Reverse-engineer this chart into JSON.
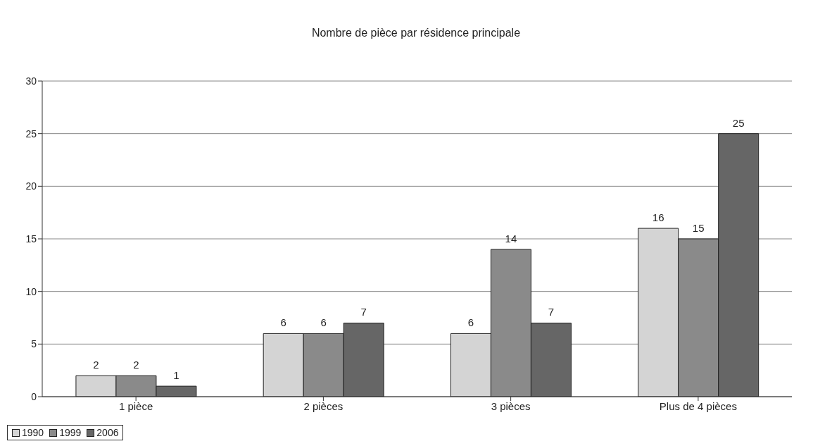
{
  "chart_data": {
    "type": "bar",
    "title": "Nombre de pièce par résidence principale",
    "categories": [
      "1 pièce",
      "2 pièces",
      "3 pièces",
      "Plus de 4 pièces"
    ],
    "series": [
      {
        "name": "1990",
        "color": "#d4d4d4",
        "values": [
          2,
          6,
          6,
          16
        ]
      },
      {
        "name": "1999",
        "color": "#8a8a8a",
        "values": [
          2,
          6,
          14,
          15
        ]
      },
      {
        "name": "2006",
        "color": "#666666",
        "values": [
          1,
          7,
          7,
          25
        ]
      }
    ],
    "ylim": [
      0,
      30
    ],
    "yticks": [
      0,
      5,
      10,
      15,
      20,
      25,
      30
    ],
    "grid": "y",
    "legend": "bottom",
    "data_labels": true
  }
}
